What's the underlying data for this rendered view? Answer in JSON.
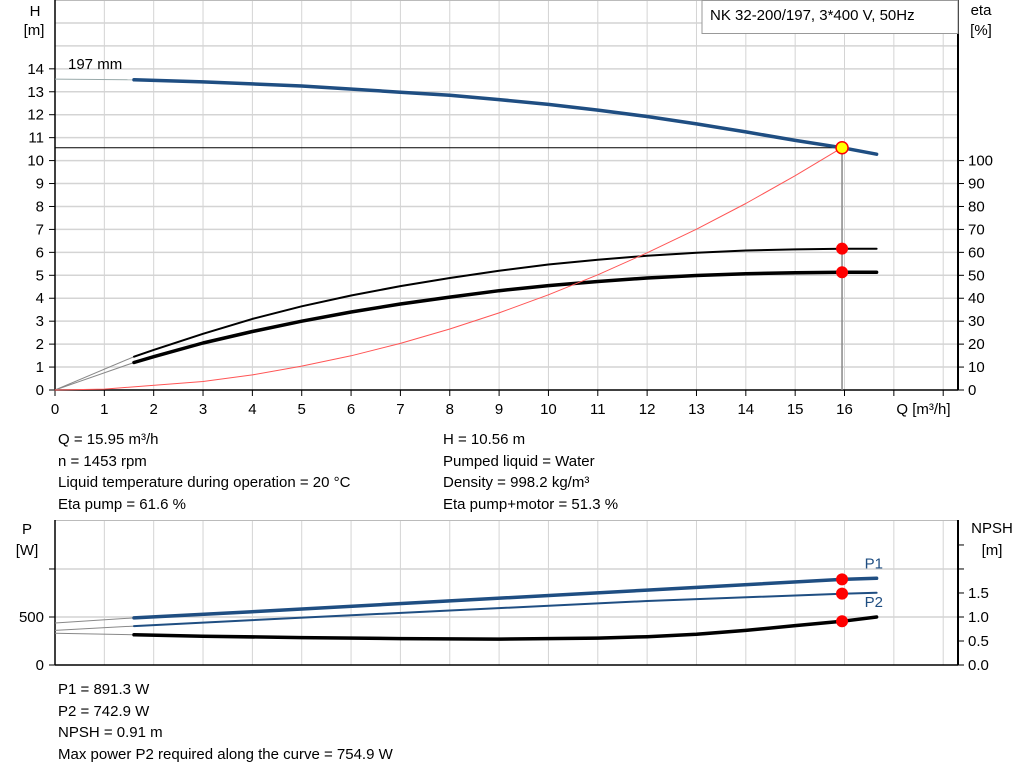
{
  "chart_data": [
    {
      "type": "line",
      "title": "NK 32-200/197, 3*400 V, 50Hz",
      "xlabel": "Q [m³/h]",
      "ylabel": "H",
      "ylabel_unit": "[m]",
      "y2label": "eta",
      "y2label_unit": "[%]",
      "xlim": [
        0,
        18.3
      ],
      "ylim": [
        0,
        17
      ],
      "y2lim": [
        0,
        170
      ],
      "grid": true,
      "x_ticks": [
        "0",
        "1",
        "2",
        "3",
        "4",
        "5",
        "6",
        "7",
        "8",
        "9",
        "10",
        "11",
        "12",
        "13",
        "14",
        "15",
        "16"
      ],
      "y_ticks": [
        "0",
        "1",
        "2",
        "3",
        "4",
        "5",
        "6",
        "7",
        "8",
        "9",
        "10",
        "11",
        "12",
        "13",
        "14"
      ],
      "y2_ticks": [
        "0",
        "10",
        "20",
        "30",
        "40",
        "50",
        "60",
        "70",
        "80",
        "90",
        "100"
      ],
      "thin_below_q": 1.6,
      "duty_point": {
        "q": 15.95,
        "h": 10.56
      },
      "annotation": "197 mm",
      "series": [
        {
          "key": "head",
          "axis": "y",
          "color": "#1f4e82",
          "width": 3.5,
          "x": [
            0,
            1.6,
            3,
            5,
            7,
            8,
            9,
            10,
            11,
            12,
            13,
            14,
            15,
            15.95,
            16.65
          ],
          "y": [
            13.55,
            13.52,
            13.43,
            13.25,
            12.98,
            12.85,
            12.66,
            12.45,
            12.2,
            11.92,
            11.6,
            11.25,
            10.88,
            10.56,
            10.28
          ]
        },
        {
          "key": "eta-pump",
          "axis": "y2",
          "color": "#000000",
          "width": 2,
          "x": [
            0,
            1.6,
            2,
            3,
            4,
            5,
            6,
            7,
            8,
            9,
            10,
            11,
            12,
            13,
            14,
            15,
            15.95,
            16.65
          ],
          "y": [
            0,
            14.5,
            17.5,
            24.5,
            31,
            36.5,
            41.2,
            45.3,
            48.8,
            52,
            54.7,
            56.8,
            58.5,
            59.8,
            60.8,
            61.3,
            61.6,
            61.6
          ]
        },
        {
          "key": "eta-pump-motor",
          "axis": "y2",
          "color": "#000000",
          "width": 3.5,
          "x": [
            0,
            1.6,
            2,
            3,
            4,
            5,
            6,
            7,
            8,
            9,
            10,
            11,
            12,
            13,
            14,
            15,
            15.95,
            16.65
          ],
          "y": [
            0,
            12,
            14.5,
            20.5,
            25.5,
            30,
            34,
            37.5,
            40.5,
            43.3,
            45.5,
            47.3,
            48.8,
            49.9,
            50.7,
            51.1,
            51.3,
            51.3
          ]
        },
        {
          "key": "system-curve",
          "axis": "y",
          "color": "#ff5555",
          "width": 1,
          "x": [
            0,
            1,
            2,
            3,
            4,
            5,
            6,
            7,
            8,
            9,
            10,
            11,
            12,
            13,
            14,
            15,
            15.95
          ],
          "y": [
            0,
            0.04,
            0.17,
            0.37,
            0.66,
            1.04,
            1.49,
            2.03,
            2.66,
            3.36,
            4.15,
            5.02,
            5.98,
            7.01,
            8.13,
            9.34,
            10.56
          ]
        }
      ],
      "markers": [
        {
          "x": 15.95,
          "y": 61.6,
          "axis": "y2",
          "color": "#ff0000"
        },
        {
          "x": 15.95,
          "y": 51.3,
          "axis": "y2",
          "color": "#ff0000"
        }
      ],
      "duty_marker_color": "#ffff00"
    },
    {
      "type": "line",
      "ylabel": "P",
      "ylabel_unit": "[W]",
      "y2label": "NPSH",
      "y2label_unit": "[m]",
      "xlim": [
        0,
        18.3
      ],
      "ylim": [
        0,
        1510
      ],
      "y2lim": [
        0,
        3.02
      ],
      "grid": true,
      "y_ticks": [
        "0",
        "500"
      ],
      "y2_ticks": [
        "0.0",
        "0.5",
        "1.0",
        "1.5"
      ],
      "thin_below_q": 1.6,
      "series": [
        {
          "key": "P1",
          "name": "P1",
          "axis": "y",
          "color": "#1f4e82",
          "width": 3.5,
          "x": [
            0,
            1.6,
            4,
            8,
            12,
            15.95,
            16.65
          ],
          "y": [
            437,
            490,
            555,
            668,
            780,
            891,
            903
          ]
        },
        {
          "key": "P2",
          "name": "P2",
          "axis": "y",
          "color": "#1f4e82",
          "width": 2,
          "x": [
            0,
            1.6,
            4,
            8,
            12,
            15.95,
            16.65
          ],
          "y": [
            360,
            405,
            468,
            568,
            666,
            743,
            752
          ]
        },
        {
          "key": "NPSH",
          "axis": "y2",
          "color": "#000000",
          "width": 3.5,
          "x": [
            0,
            1.6,
            3,
            5,
            7,
            9,
            11,
            12,
            13,
            14,
            15,
            15.95,
            16.65
          ],
          "y": [
            0.66,
            0.63,
            0.6,
            0.57,
            0.55,
            0.54,
            0.56,
            0.59,
            0.64,
            0.72,
            0.82,
            0.91,
            1.0
          ]
        }
      ],
      "markers": [
        {
          "x": 15.95,
          "y": 891.3,
          "axis": "y",
          "color": "#ff0000"
        },
        {
          "x": 15.95,
          "y": 742.9,
          "axis": "y",
          "color": "#ff0000"
        },
        {
          "x": 15.95,
          "y": 0.91,
          "axis": "y2",
          "color": "#ff0000"
        }
      ]
    }
  ],
  "info_top": {
    "left": [
      "Q = 15.95 m³/h",
      "n = 1453 rpm",
      "Liquid temperature during operation = 20 °C",
      "Eta pump = 61.6 %"
    ],
    "right": [
      "H = 10.56 m",
      "Pumped liquid = Water",
      "Density = 998.2 kg/m³",
      "Eta pump+motor = 51.3 %"
    ]
  },
  "info_bottom": [
    "P1 = 891.3 W",
    "P2 = 742.9 W",
    "NPSH = 0.91 m",
    "Max power P2 required along the curve = 754.9 W"
  ]
}
